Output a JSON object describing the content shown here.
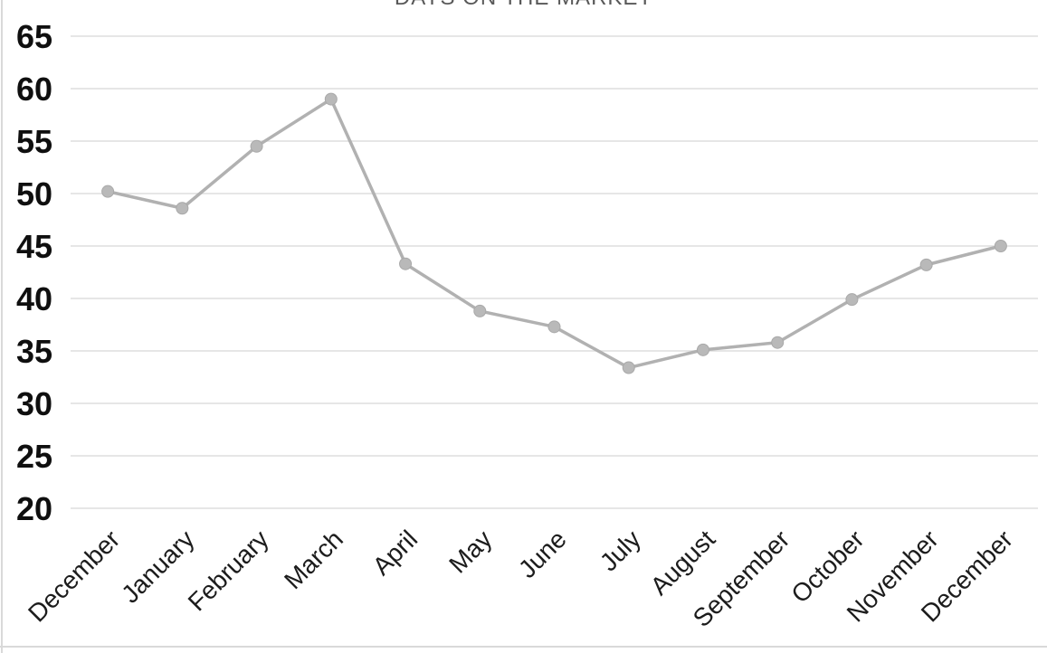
{
  "chart_data": {
    "type": "line",
    "title": "DAYS ON THE MARKET",
    "categories": [
      "December",
      "January",
      "February",
      "March",
      "April",
      "May",
      "June",
      "July",
      "August",
      "September",
      "October",
      "November",
      "December"
    ],
    "values": [
      50.2,
      48.6,
      54.5,
      59,
      43.3,
      38.8,
      37.3,
      33.4,
      35.1,
      35.8,
      39.9,
      43.2,
      45
    ],
    "xlabel": "",
    "ylabel": "",
    "ylim": [
      20,
      65
    ],
    "yticks": [
      20,
      25,
      30,
      35,
      40,
      45,
      50,
      55,
      60,
      65
    ],
    "grid": true,
    "legend_position": "none",
    "x_tick_rotation_deg": 45,
    "title_position": "top-center-cut-off",
    "colors": {
      "line": "#b1b1b1",
      "marker_fill": "#b9b9b9",
      "marker_stroke": "#a9a9a9",
      "gridline": "#e2e2e2",
      "y_tick_label": "#0f0f0f",
      "x_tick_label": "#1c1c1c",
      "title": "#595959",
      "background": "#ffffff",
      "frame_border": "#d9d9d9"
    }
  }
}
